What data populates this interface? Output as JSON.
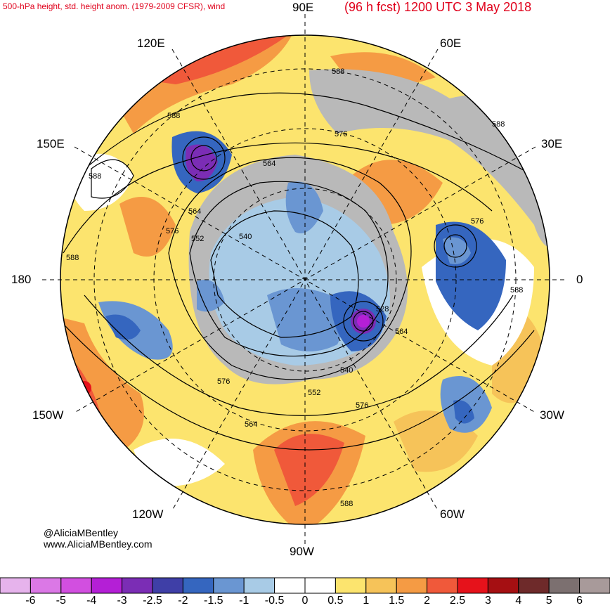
{
  "header": {
    "left": "500-hPa height, std. height anom. (1979-2009 CFSR), wind",
    "right": "(96 h fcst) 1200 UTC 3 May 2018"
  },
  "longitude_labels": {
    "top": "90E",
    "top_left": "120E",
    "top_right": "60E",
    "left_upper": "150E",
    "right_upper": "30E",
    "left": "180",
    "right": "0",
    "left_lower": "150W",
    "right_lower": "30W",
    "bottom_left": "120W",
    "bottom_right": "60W",
    "bottom": "90W"
  },
  "contour_labels": [
    "588",
    "588",
    "576",
    "588",
    "564",
    "588",
    "588",
    "576",
    "552",
    "540",
    "564",
    "576",
    "588",
    "528",
    "564",
    "540",
    "552",
    "576",
    "564",
    "576",
    "588"
  ],
  "credits": {
    "twitter": "@AliciaMBentley",
    "website": "www.AliciaMBentley.com"
  },
  "colorbar": {
    "ticks": [
      "-6",
      "-5",
      "-4",
      "-3",
      "-2.5",
      "-2",
      "-1.5",
      "-1",
      "-0.5",
      "0",
      "0.5",
      "1",
      "1.5",
      "2",
      "2.5",
      "3",
      "4",
      "5",
      "6"
    ],
    "colors": [
      "#e6b3ec",
      "#db78e6",
      "#d24fe0",
      "#b41fd6",
      "#7b2db5",
      "#3f3fa7",
      "#3566bf",
      "#6a96d2",
      "#a8cbe6",
      "#ffffff",
      "#ffffff",
      "#fce46e",
      "#f6c359",
      "#f59b44",
      "#f0593a",
      "#e6121b",
      "#a50f12",
      "#6e2a2a",
      "#7c7070",
      "#a89a9a"
    ]
  },
  "colors": {
    "land_gray": "#b9b9b9",
    "warm_yellow": "#fce46e",
    "warm_orange": "#f6c359",
    "warm_dark": "#f59b44",
    "red": "#f0593a",
    "cool_light": "#a8cbe6",
    "cool_mid": "#6a96d2",
    "cool_dark": "#3566bf",
    "purple": "#7b2db5",
    "magenta": "#b41fd6"
  }
}
